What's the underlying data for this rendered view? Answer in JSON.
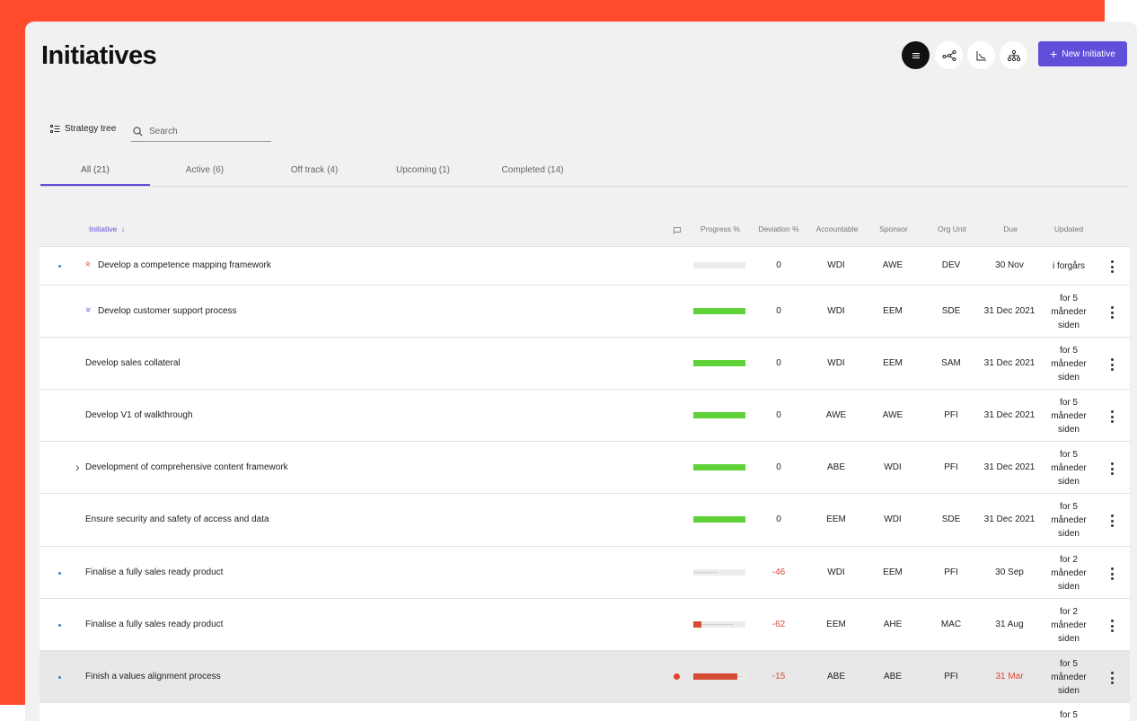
{
  "header": {
    "title": "Initiatives",
    "new_button": "New Initiative"
  },
  "view_buttons": [
    {
      "name": "list-view-icon",
      "active": true
    },
    {
      "name": "network-view-icon",
      "active": false
    },
    {
      "name": "chart-view-icon",
      "active": false
    },
    {
      "name": "hierarchy-view-icon",
      "active": false
    }
  ],
  "toolbar": {
    "strategy_tree": "Strategy tree",
    "search_placeholder": "Search"
  },
  "tabs": [
    {
      "label": "All (21)",
      "active": true
    },
    {
      "label": "Active (6)",
      "active": false
    },
    {
      "label": "Off track (4)",
      "active": false
    },
    {
      "label": "Upcoming (1)",
      "active": false
    },
    {
      "label": "Completed (14)",
      "active": false
    }
  ],
  "columns": {
    "initiative": "Initiative",
    "progress": "Progress %",
    "deviation": "Deviation %",
    "accountable": "Accountable",
    "sponsor": "Sponsor",
    "org_unit": "Org Unit",
    "due": "Due",
    "updated": "Updated"
  },
  "colors": {
    "accent": "#5f4fd9",
    "ok": "#5fd23a",
    "danger": "#d64b34",
    "brand_bg": "#ff4b2b"
  },
  "rows": [
    {
      "name": "Develop a competence mapping framework",
      "priority": "high",
      "dot": true,
      "expand": false,
      "progress": 0,
      "fill_color": "",
      "deviation": "0",
      "accountable": "WDI",
      "sponsor": "AWE",
      "org_unit": "DEV",
      "due": "30 Nov",
      "due_overdue": false,
      "updated_lines": [
        "i forgårs"
      ],
      "flag": false,
      "highlight": false
    },
    {
      "name": "Develop customer support process",
      "priority": "low",
      "dot": false,
      "expand": false,
      "progress": 1,
      "fill_color": "#5fd23a",
      "deviation": "0",
      "accountable": "WDI",
      "sponsor": "EEM",
      "org_unit": "SDE",
      "due": "31 Dec 2021",
      "due_overdue": false,
      "updated_lines": [
        "for 5",
        "måneder",
        "siden"
      ],
      "flag": false,
      "highlight": false
    },
    {
      "name": "Develop sales collateral",
      "priority": "",
      "dot": false,
      "expand": false,
      "progress": 1,
      "fill_color": "#5fd23a",
      "deviation": "0",
      "accountable": "WDI",
      "sponsor": "EEM",
      "org_unit": "SAM",
      "due": "31 Dec 2021",
      "due_overdue": false,
      "updated_lines": [
        "for 5",
        "måneder",
        "siden"
      ],
      "flag": false,
      "highlight": false
    },
    {
      "name": "Develop V1 of walkthrough",
      "priority": "",
      "dot": false,
      "expand": false,
      "progress": 1,
      "fill_color": "#5fd23a",
      "deviation": "0",
      "accountable": "AWE",
      "sponsor": "AWE",
      "org_unit": "PFI",
      "due": "31 Dec 2021",
      "due_overdue": false,
      "updated_lines": [
        "for 5",
        "måneder",
        "siden"
      ],
      "flag": false,
      "highlight": false
    },
    {
      "name": "Development of comprehensive content framework",
      "priority": "",
      "dot": false,
      "expand": true,
      "progress": 1,
      "fill_color": "#5fd23a",
      "deviation": "0",
      "accountable": "ABE",
      "sponsor": "WDI",
      "org_unit": "PFI",
      "due": "31 Dec 2021",
      "due_overdue": false,
      "updated_lines": [
        "for 5",
        "måneder",
        "siden"
      ],
      "flag": false,
      "highlight": false
    },
    {
      "name": "Ensure security and safety of access and data",
      "priority": "",
      "dot": false,
      "expand": false,
      "progress": 1,
      "fill_color": "#5fd23a",
      "deviation": "0",
      "accountable": "EEM",
      "sponsor": "WDI",
      "org_unit": "SDE",
      "due": "31 Dec 2021",
      "due_overdue": false,
      "updated_lines": [
        "for 5",
        "måneder",
        "siden"
      ],
      "flag": false,
      "highlight": false
    },
    {
      "name": "Finalise a fully sales ready product",
      "priority": "",
      "dot": true,
      "expand": false,
      "progress": 0,
      "ghost": 0.46,
      "fill_color": "",
      "deviation": "-46",
      "accountable": "WDI",
      "sponsor": "EEM",
      "org_unit": "PFI",
      "due": "30 Sep",
      "due_overdue": false,
      "updated_lines": [
        "for 2",
        "måneder",
        "siden"
      ],
      "flag": false,
      "highlight": false
    },
    {
      "name": "Finalise a fully sales ready product",
      "priority": "",
      "dot": true,
      "expand": false,
      "progress": 0.15,
      "ghost": 0.77,
      "fill_color": "#d64b34",
      "deviation": "-62",
      "accountable": "EEM",
      "sponsor": "AHE",
      "org_unit": "MAC",
      "due": "31 Aug",
      "due_overdue": false,
      "updated_lines": [
        "for 2",
        "måneder",
        "siden"
      ],
      "flag": false,
      "highlight": false
    },
    {
      "name": "Finish a values alignment process",
      "priority": "",
      "dot": true,
      "expand": false,
      "progress": 0.85,
      "ghost": 0.95,
      "fill_color": "#d64b34",
      "deviation": "-15",
      "accountable": "ABE",
      "sponsor": "ABE",
      "org_unit": "PFI",
      "due": "31 Mar",
      "due_overdue": true,
      "updated_lines": [
        "for 5",
        "måneder",
        "siden"
      ],
      "flag": true,
      "highlight": true
    },
    {
      "name": "",
      "priority": "",
      "dot": false,
      "expand": false,
      "progress": null,
      "fill_color": "",
      "deviation": "",
      "accountable": "",
      "sponsor": "",
      "org_unit": "",
      "due": "",
      "due_overdue": false,
      "updated_lines": [
        "for 5"
      ],
      "flag": false,
      "highlight": false
    }
  ]
}
